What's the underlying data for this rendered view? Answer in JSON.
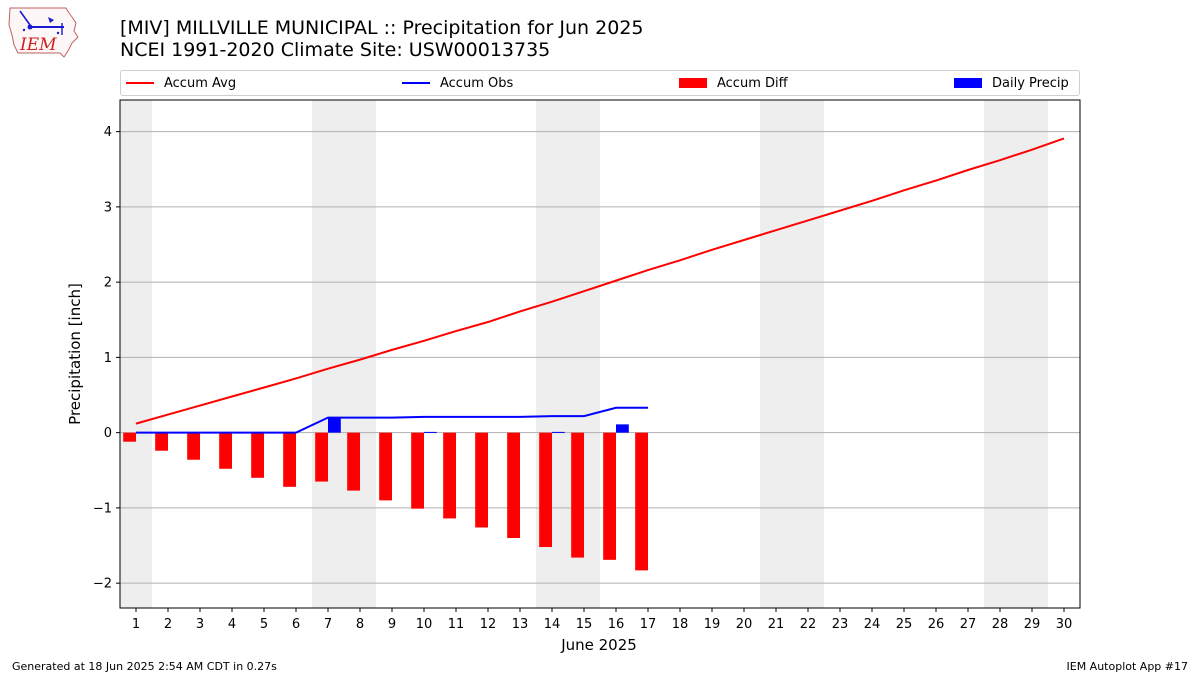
{
  "title_line1": "[MIV] MILLVILLE MUNICIPAL :: Precipitation for Jun 2025",
  "title_line2": "NCEI 1991-2020 Climate Site: USW00013735",
  "logo_text": "IEM",
  "footer_left": "Generated at 18 Jun 2025 2:54 AM CDT in 0.27s",
  "footer_right": "IEM Autoplot App #17",
  "colors": {
    "accum_avg": "#ff0000",
    "accum_obs": "#0000ff",
    "accum_diff": "#ff0000",
    "daily_precip": "#0000ff",
    "weekend_shade": "#eeeeee",
    "grid": "#b0b0b0"
  },
  "legend": {
    "accum_avg": "Accum Avg",
    "accum_obs": "Accum Obs",
    "accum_diff": "Accum Diff",
    "daily_precip": "Daily Precip"
  },
  "chart_data": {
    "type": "bar",
    "xlabel": "June 2025",
    "ylabel": "Precipitation [inch]",
    "ylim": [
      -2.33,
      4.42
    ],
    "xlim": [
      0.5,
      30.5
    ],
    "yticks": [
      -2,
      -1,
      0,
      1,
      2,
      3,
      4
    ],
    "ytick_labels": [
      "−2",
      "−1",
      "0",
      "1",
      "2",
      "3",
      "4"
    ],
    "days": [
      1,
      2,
      3,
      4,
      5,
      6,
      7,
      8,
      9,
      10,
      11,
      12,
      13,
      14,
      15,
      16,
      17,
      18,
      19,
      20,
      21,
      22,
      23,
      24,
      25,
      26,
      27,
      28,
      29,
      30
    ],
    "weekend_days": [
      1,
      7,
      8,
      14,
      15,
      21,
      22,
      28,
      29
    ],
    "grid": "y",
    "legend_position": "top",
    "accum_avg": [
      0.12,
      0.24,
      0.36,
      0.48,
      0.6,
      0.72,
      0.85,
      0.97,
      1.1,
      1.22,
      1.35,
      1.47,
      1.61,
      1.74,
      1.88,
      2.02,
      2.16,
      2.29,
      2.43,
      2.56,
      2.69,
      2.82,
      2.95,
      3.08,
      3.22,
      3.35,
      3.49,
      3.62,
      3.76,
      3.91
    ],
    "accum_obs": [
      0,
      0,
      0,
      0,
      0,
      0,
      0.2,
      0.2,
      0.2,
      0.21,
      0.21,
      0.21,
      0.21,
      0.22,
      0.22,
      0.33,
      0.33
    ],
    "accum_diff": [
      -0.12,
      -0.24,
      -0.36,
      -0.48,
      -0.6,
      -0.72,
      -0.65,
      -0.77,
      -0.9,
      -1.01,
      -1.14,
      -1.26,
      -1.4,
      -1.52,
      -1.66,
      -1.69,
      -1.83
    ],
    "daily_precip": [
      0,
      0,
      0,
      0,
      0,
      0,
      0.2,
      0,
      0,
      0.01,
      0,
      0,
      0,
      0.01,
      0,
      0.11,
      0
    ]
  }
}
